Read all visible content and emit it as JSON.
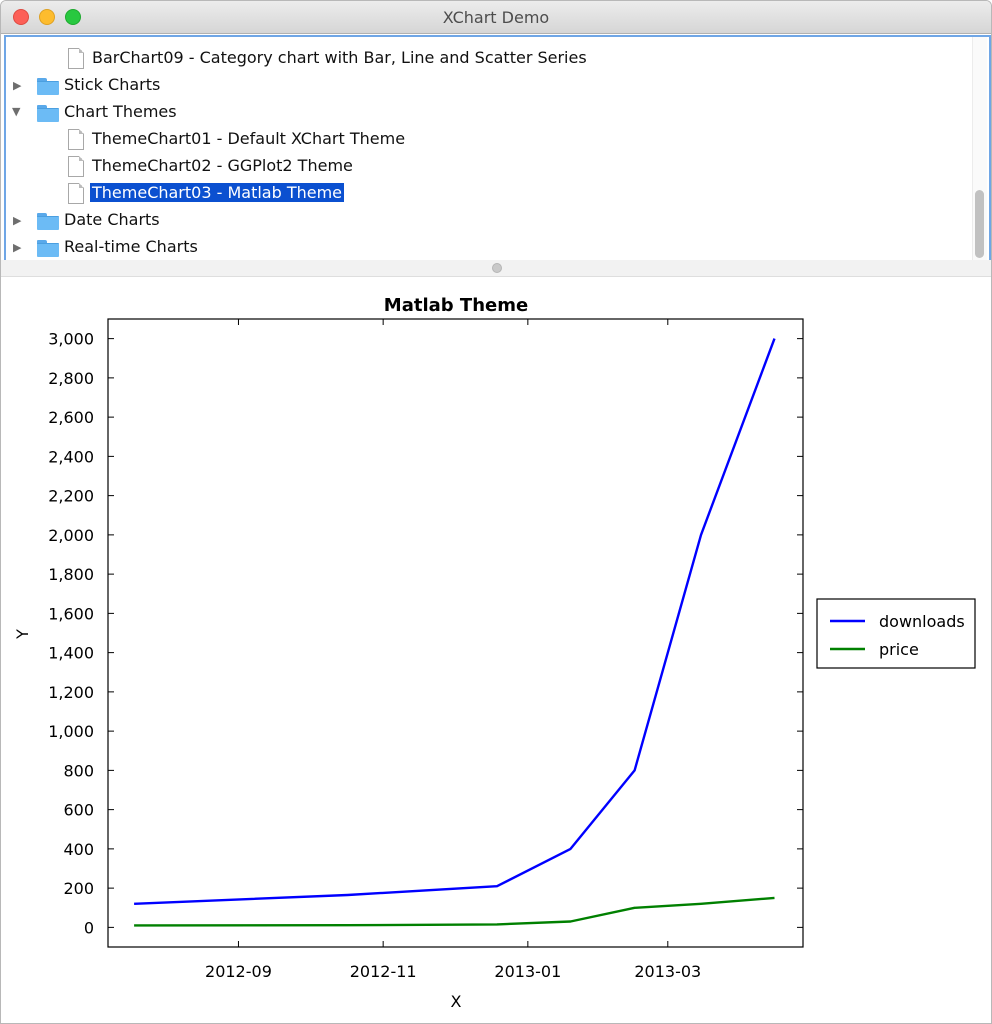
{
  "window": {
    "title": "XChart Demo"
  },
  "tree": {
    "items": [
      {
        "type": "file",
        "label": "BarChart09 - Category chart with Bar, Line and Scatter Series",
        "selected": false
      },
      {
        "type": "folder",
        "label": "Stick Charts",
        "expanded": false
      },
      {
        "type": "folder",
        "label": "Chart Themes",
        "expanded": true
      },
      {
        "type": "file",
        "label": "ThemeChart01 - Default XChart Theme",
        "selected": false
      },
      {
        "type": "file",
        "label": "ThemeChart02 - GGPlot2 Theme",
        "selected": false
      },
      {
        "type": "file",
        "label": "ThemeChart03 - Matlab Theme",
        "selected": true
      },
      {
        "type": "folder",
        "label": "Date Charts",
        "expanded": false
      },
      {
        "type": "folder",
        "label": "Real-time Charts",
        "expanded": false
      }
    ]
  },
  "chart_data": {
    "type": "line",
    "title": "Matlab Theme",
    "xlabel": "X",
    "ylabel": "Y",
    "x": [
      "2012-07-19",
      "2012-10-17",
      "2012-12-19",
      "2013-01-19",
      "2013-02-15",
      "2013-03-15",
      "2013-04-15"
    ],
    "series": [
      {
        "name": "downloads",
        "color": "#0000ff",
        "values": [
          120,
          165,
          210,
          400,
          800,
          2000,
          3000
        ]
      },
      {
        "name": "price",
        "color": "#008000",
        "values": [
          10,
          11,
          15,
          30,
          100,
          120,
          150
        ]
      }
    ],
    "ylim": [
      -100,
      3100
    ],
    "xlim": [
      "2012-07-08",
      "2013-04-27"
    ],
    "yticks": [
      0,
      200,
      400,
      600,
      800,
      1000,
      1200,
      1400,
      1600,
      1800,
      2000,
      2200,
      2400,
      2600,
      2800,
      3000
    ],
    "ytick_labels": [
      "0",
      "200",
      "400",
      "600",
      "800",
      "1,000",
      "1,200",
      "1,400",
      "1,600",
      "1,800",
      "2,000",
      "2,200",
      "2,400",
      "2,600",
      "2,800",
      "3,000"
    ],
    "xticks": [
      "2012-09-01",
      "2012-11-01",
      "2013-01-01",
      "2013-03-01"
    ],
    "xtick_labels": [
      "2012-09",
      "2012-11",
      "2013-01",
      "2013-03"
    ],
    "grid": false,
    "legend_position": "outside-right"
  }
}
